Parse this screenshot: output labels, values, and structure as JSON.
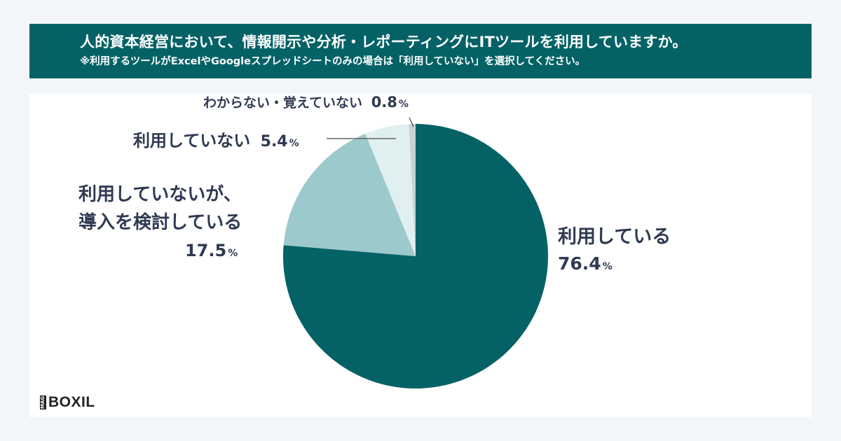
{
  "header": {
    "title": "人的資本経営において、情報開示や分析・レポーティングにITツールを利用していますか。",
    "subtitle": "※利用するツールがExcelやGoogleスプレッドシートのみの場合は「利用していない」を選択してください。"
  },
  "labels": {
    "using": {
      "line1": "利用している",
      "value": "76.4",
      "unit": "%"
    },
    "considering": {
      "line1": "利用していないが、",
      "line2": "導入を検討している",
      "value": "17.5",
      "unit": "%"
    },
    "not_using": {
      "line1": "利用していない",
      "value": "5.4",
      "unit": "%"
    },
    "unknown": {
      "line1": "わからない・覚えていない",
      "value": "0.8",
      "unit": "%"
    }
  },
  "logo": {
    "mag": "MAG",
    "brand": "BOXIL"
  },
  "colors": {
    "header_bg": "#046266",
    "using": "#046266",
    "considering": "#9cc9cc",
    "not_using": "#e0eff0",
    "unknown": "#c7d2d4",
    "label_text": "#2f3a52"
  },
  "chart_data": {
    "type": "pie",
    "title": "人的資本経営において、情報開示や分析・レポーティングにITツールを利用していますか。",
    "subtitle": "※利用するツールがExcelやGoogleスプレッドシートのみの場合は「利用していない」を選択してください。",
    "categories": [
      "利用している",
      "利用していないが、導入を検討している",
      "利用していない",
      "わからない・覚えていない"
    ],
    "values": [
      76.4,
      17.5,
      5.4,
      0.8
    ],
    "unit": "%",
    "start_angle": "12 o'clock, clockwise",
    "legend": "none (direct labels)"
  }
}
